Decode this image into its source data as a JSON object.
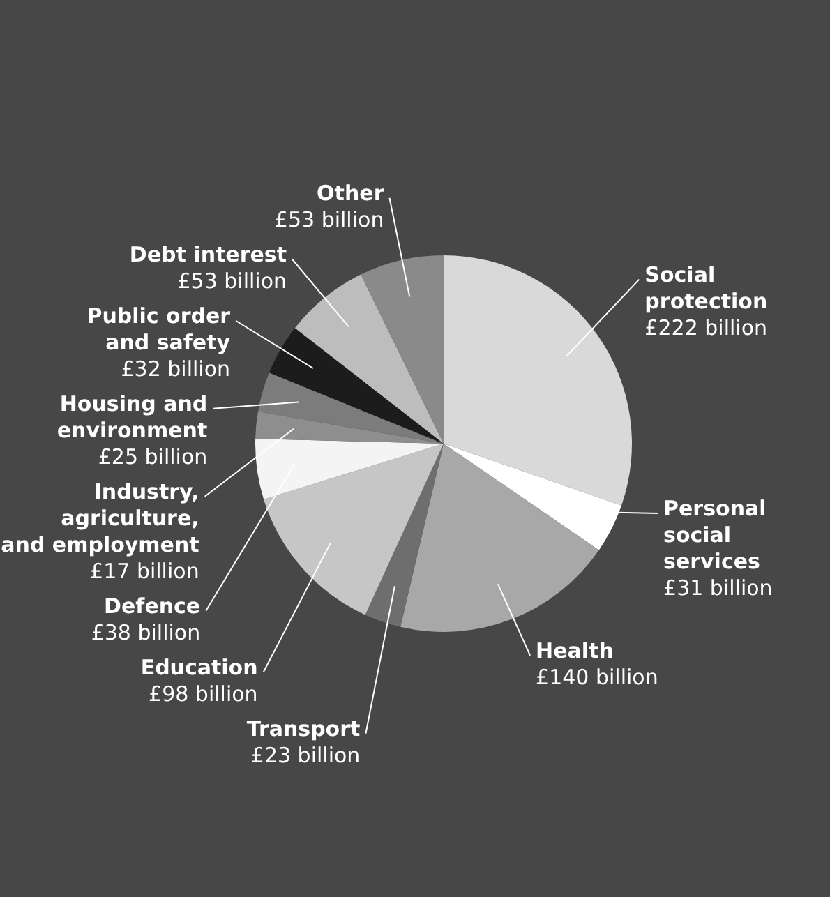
{
  "chart_data": {
    "type": "pie",
    "categories": [
      "Social protection",
      "Personal social services",
      "Health",
      "Transport",
      "Education",
      "Defence",
      "Industry, agriculture, and employment",
      "Housing and environment",
      "Public order and safety",
      "Debt interest",
      "Other"
    ],
    "values": [
      222,
      31,
      140,
      23,
      98,
      38,
      17,
      25,
      32,
      53,
      53
    ],
    "value_labels": [
      "£222 billion",
      "£31 billion",
      "£140 billion",
      "£23 billion",
      "£98 billion",
      "£38 billion",
      "£17 billion",
      "£25 billion",
      "£32 billion",
      "£53 billion",
      "£53 billion"
    ],
    "colors": [
      "#d9d9d9",
      "#ffffff",
      "#a8a8a8",
      "#6e6e6e",
      "#c6c6c6",
      "#f4f4f4",
      "#8e8e8e",
      "#7c7c7c",
      "#1c1c1c",
      "#bdbdbd",
      "#8a8a8a"
    ]
  }
}
